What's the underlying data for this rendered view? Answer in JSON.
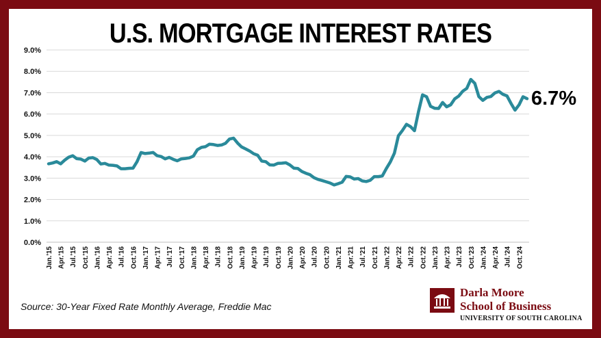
{
  "title": "U.S. MORTGAGE INTEREST RATES",
  "source": "Source: 30-Year Fixed Rate Monthly Average, Freddie Mac",
  "logo": {
    "line1": "Darla Moore",
    "line2": "School of Business",
    "line3": "UNIVERSITY OF SOUTH CAROLINA"
  },
  "colors": {
    "frame": "#7b0b12",
    "line": "#2a8a9a",
    "grid": "#d9d9d9"
  },
  "chart_data": {
    "type": "line",
    "title": "U.S. MORTGAGE INTEREST RATES",
    "xlabel": "",
    "ylabel": "",
    "ylim": [
      0,
      9
    ],
    "ytick_labels": [
      "0.0%",
      "1.0%",
      "2.0%",
      "3.0%",
      "4.0%",
      "5.0%",
      "6.0%",
      "7.0%",
      "8.0%",
      "9.0%"
    ],
    "grid": "horizontal",
    "legend": "none",
    "end_label": "6.7%",
    "x_tick_labels": [
      "Jan.'15",
      "Apr.'15",
      "Jul.'15",
      "Oct.'15",
      "Jan.'16",
      "Apr.'16",
      "Jul.'16",
      "Oct.'16",
      "Jan.'17",
      "Apr.'17",
      "Jul.'17",
      "Oct.'17",
      "Jan.'18",
      "Apr.'18",
      "Jul.'18",
      "Oct.'18",
      "Jan.'19",
      "Apr.'19",
      "Jul.'19",
      "Oct.'19",
      "Jan.'20",
      "Apr.'20",
      "Jul.'20",
      "Oct.'20",
      "Jan.'21",
      "Apr.'21",
      "Jul.'21",
      "Oct.'21",
      "Jan.'22",
      "Apr.'22",
      "Jul.'22",
      "Oct.'22",
      "Jan.'23",
      "Apr.'23",
      "Jul.'23",
      "Oct.'23",
      "Jan.'24",
      "Apr.'24",
      "Jul.'24",
      "Oct.'24"
    ],
    "series": [
      {
        "values": [
          3.67,
          3.71,
          3.77,
          3.67,
          3.84,
          3.98,
          4.05,
          3.91,
          3.89,
          3.8,
          3.94,
          3.96,
          3.87,
          3.66,
          3.69,
          3.61,
          3.6,
          3.57,
          3.44,
          3.44,
          3.46,
          3.47,
          3.77,
          4.2,
          4.15,
          4.17,
          4.2,
          4.05,
          4.01,
          3.9,
          3.97,
          3.88,
          3.81,
          3.9,
          3.92,
          3.95,
          4.03,
          4.33,
          4.44,
          4.47,
          4.59,
          4.57,
          4.53,
          4.55,
          4.63,
          4.83,
          4.87,
          4.64,
          4.46,
          4.37,
          4.27,
          4.14,
          4.07,
          3.8,
          3.77,
          3.62,
          3.61,
          3.69,
          3.7,
          3.72,
          3.62,
          3.47,
          3.45,
          3.31,
          3.23,
          3.16,
          3.02,
          2.94,
          2.89,
          2.83,
          2.77,
          2.68,
          2.74,
          2.81,
          3.08,
          3.06,
          2.96,
          2.98,
          2.87,
          2.84,
          2.9,
          3.07,
          3.07,
          3.1,
          3.45,
          3.76,
          4.17,
          4.98,
          5.23,
          5.52,
          5.41,
          5.22,
          6.11,
          6.9,
          6.81,
          6.36,
          6.27,
          6.26,
          6.54,
          6.34,
          6.43,
          6.71,
          6.84,
          7.07,
          7.2,
          7.62,
          7.44,
          6.82,
          6.64,
          6.78,
          6.82,
          6.99,
          7.06,
          6.92,
          6.85,
          6.5,
          6.18,
          6.43,
          6.81,
          6.72
        ]
      }
    ]
  }
}
